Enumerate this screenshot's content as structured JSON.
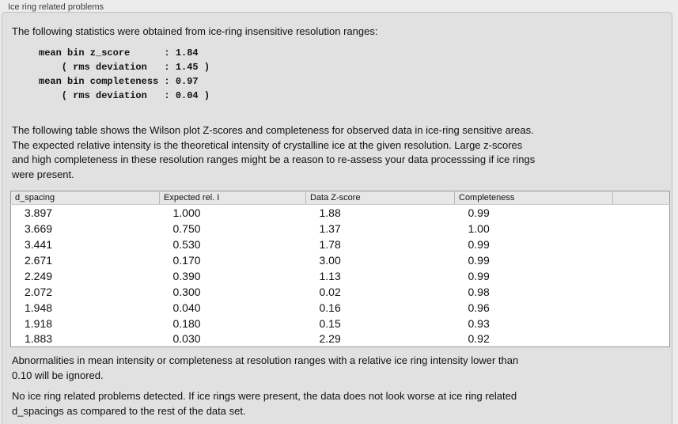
{
  "panel": {
    "title": "Ice ring related problems"
  },
  "intro": {
    "text": "The following statistics were obtained from ice-ring insensitive resolution ranges:"
  },
  "stats_block": {
    "lines": [
      "mean bin z_score      : 1.84",
      "    ( rms deviation   : 1.45 )",
      "mean bin completeness : 0.97",
      "    ( rms deviation   : 0.04 )"
    ]
  },
  "description": {
    "lines": [
      "The following table shows the Wilson plot Z-scores and completeness for observed data in ice-ring sensitive areas.",
      "The expected relative intensity is the theoretical intensity of crystalline ice at the given resolution. Large z-scores",
      "and high completeness in these resolution ranges might be a reason to re-assess your data processsing if ice rings",
      "were present."
    ]
  },
  "table": {
    "headers": [
      "d_spacing",
      "Expected rel. I",
      "Data Z-score",
      "Completeness",
      ""
    ],
    "rows": [
      [
        "3.897",
        "1.000",
        "1.88",
        "0.99"
      ],
      [
        "3.669",
        "0.750",
        "1.37",
        "1.00"
      ],
      [
        "3.441",
        "0.530",
        "1.78",
        "0.99"
      ],
      [
        "2.671",
        "0.170",
        "3.00",
        "0.99"
      ],
      [
        "2.249",
        "0.390",
        "1.13",
        "0.99"
      ],
      [
        "2.072",
        "0.300",
        "0.02",
        "0.98"
      ],
      [
        "1.948",
        "0.040",
        "0.16",
        "0.96"
      ],
      [
        "1.918",
        "0.180",
        "0.15",
        "0.93"
      ],
      [
        "1.883",
        "0.030",
        "2.29",
        "0.92"
      ]
    ]
  },
  "notes": {
    "lines": [
      "Abnormalities in mean intensity or completeness at resolution ranges with a relative ice ring intensity lower than",
      "0.10 will be ignored."
    ]
  },
  "conclusion": {
    "lines": [
      "No ice ring related problems detected. If ice rings were present, the data does not look worse at ice ring related",
      "d_spacings as compared to the rest of the data set."
    ]
  }
}
